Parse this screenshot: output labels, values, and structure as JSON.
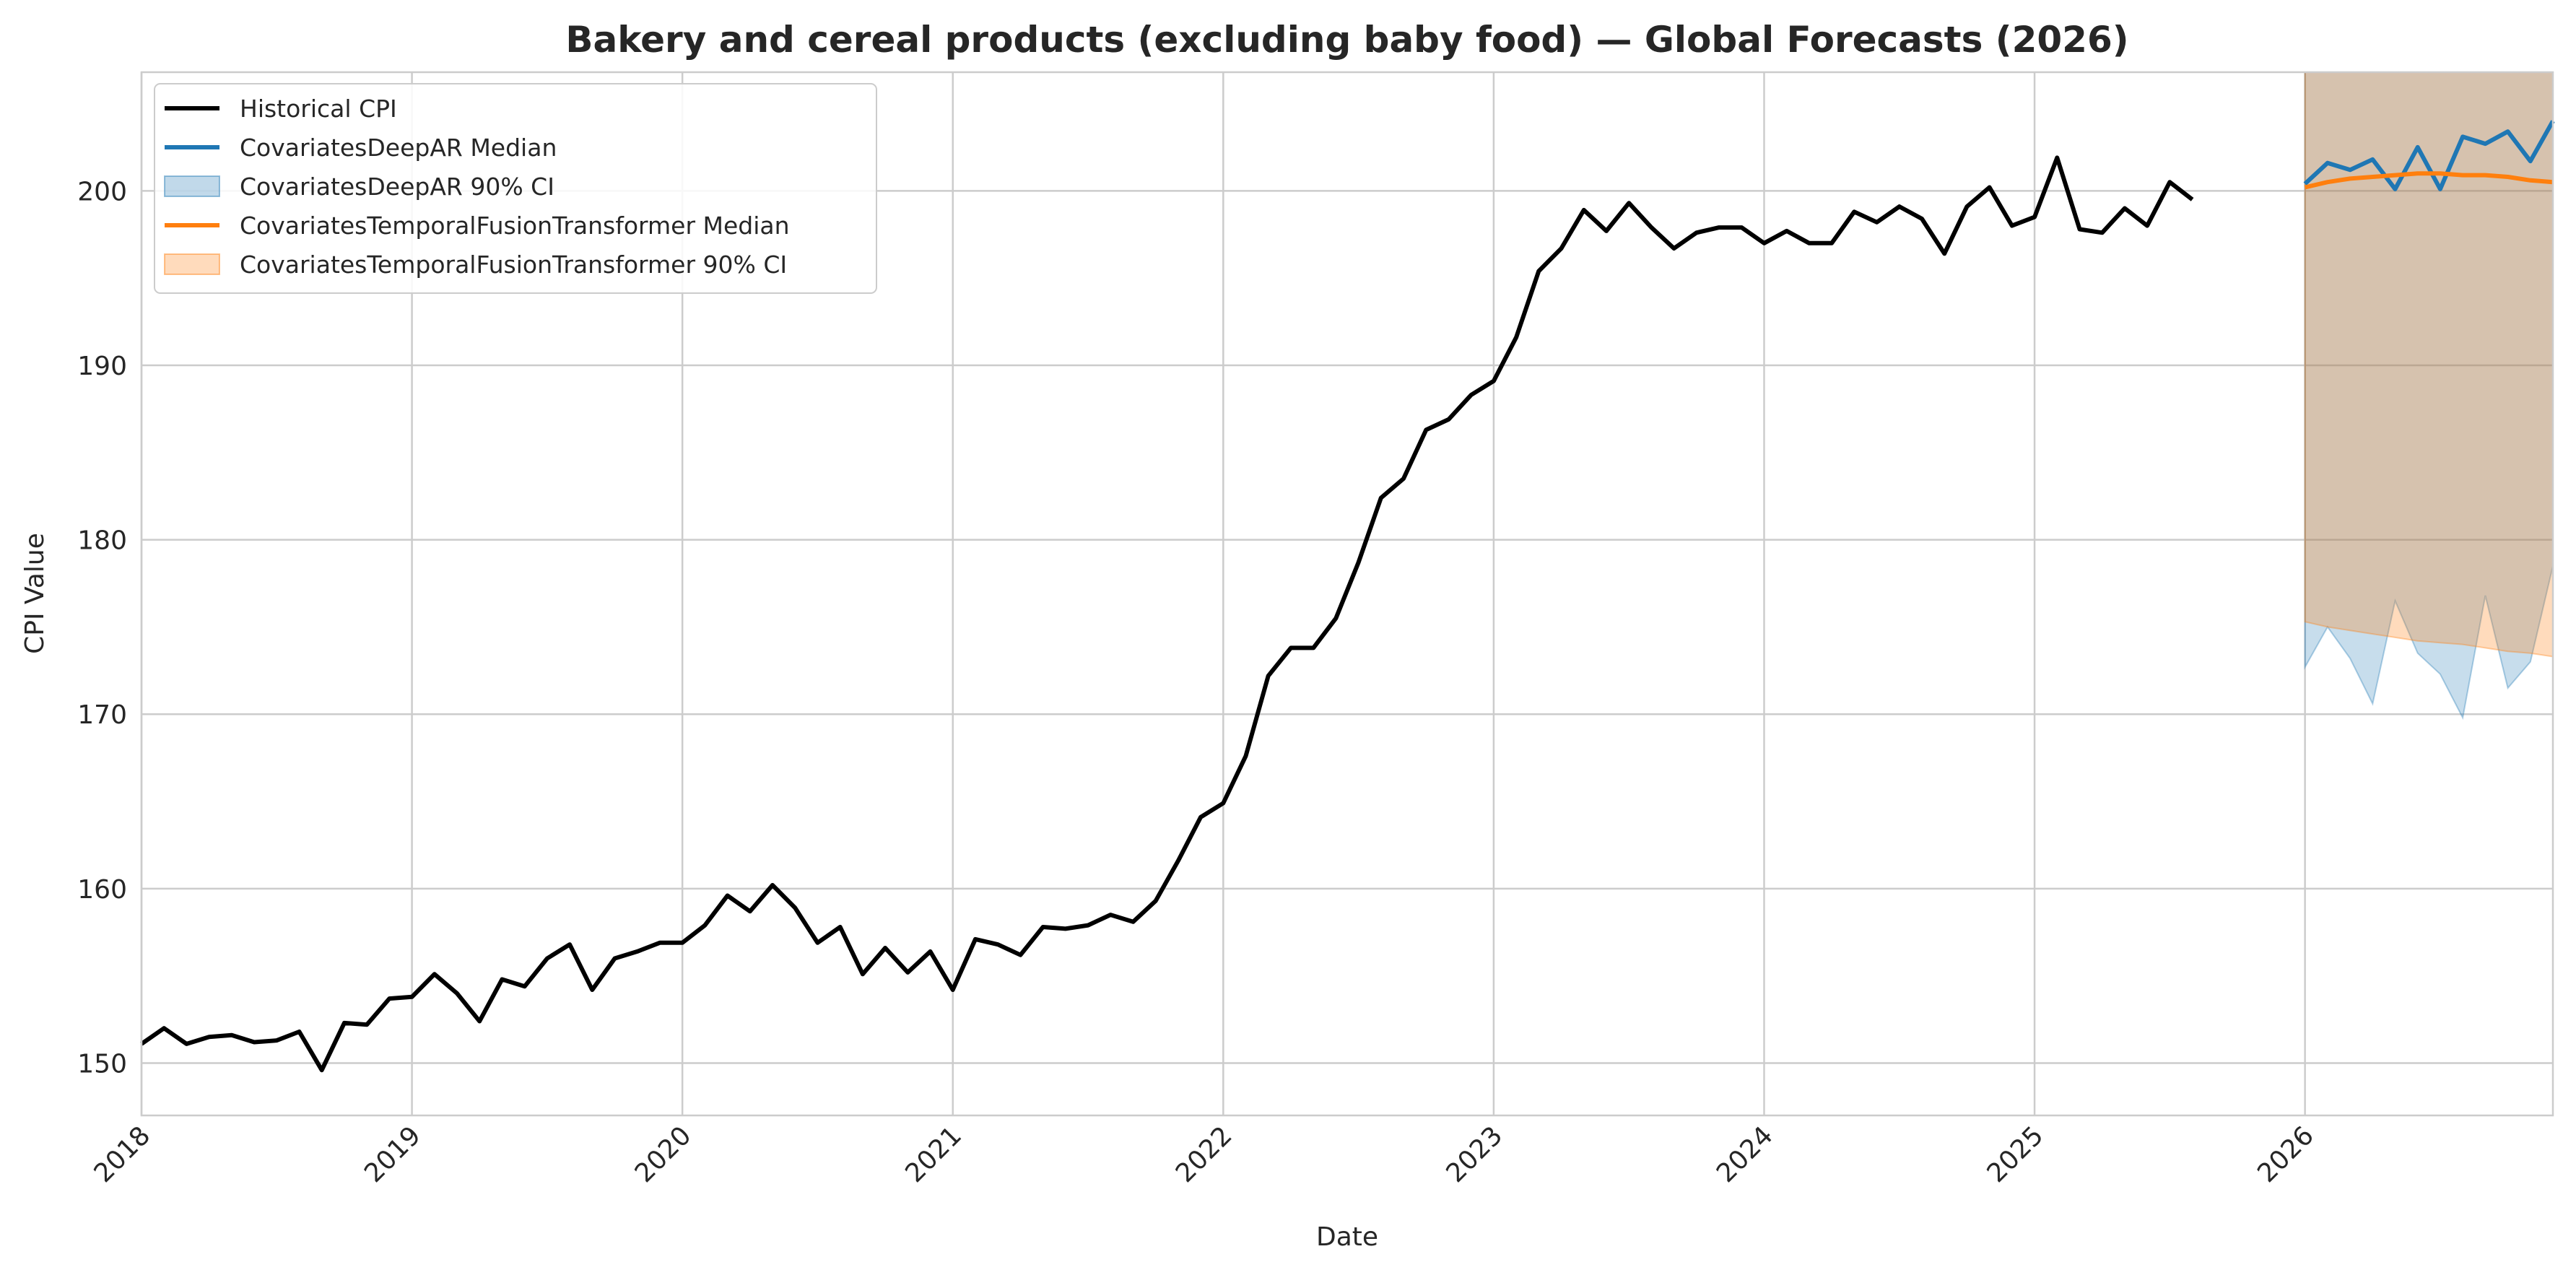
{
  "chart_data": {
    "type": "line",
    "title": "Bakery and cereal products (excluding baby food) — Global Forecasts (2026)",
    "xlabel": "Date",
    "ylabel": "CPI Value",
    "xlim": [
      "2018-01",
      "2026-12"
    ],
    "ylim": [
      147,
      206.8
    ],
    "yticks": [
      150,
      160,
      170,
      180,
      190,
      200
    ],
    "xticks": [
      "2018",
      "2019",
      "2020",
      "2021",
      "2022",
      "2023",
      "2024",
      "2025",
      "2026"
    ],
    "grid": true,
    "legend_position": "top-left",
    "colors": {
      "historical": "#000000",
      "deepar": "#1f77b4",
      "tft": "#ff7f0e",
      "overlap_band": "#c7ad98"
    },
    "legend": [
      {
        "key": "historical",
        "label": "Historical CPI",
        "kind": "line"
      },
      {
        "key": "deepar_median",
        "label": "CovariatesDeepAR Median",
        "kind": "line"
      },
      {
        "key": "deepar_ci",
        "label": "CovariatesDeepAR 90% CI",
        "kind": "band"
      },
      {
        "key": "tft_median",
        "label": "CovariatesTemporalFusionTransformer Median",
        "kind": "line"
      },
      {
        "key": "tft_ci",
        "label": "CovariatesTemporalFusionTransformer 90% CI",
        "kind": "band"
      }
    ],
    "series": [
      {
        "name": "Historical CPI",
        "x": [
          "2018-01",
          "2018-02",
          "2018-03",
          "2018-04",
          "2018-05",
          "2018-06",
          "2018-07",
          "2018-08",
          "2018-09",
          "2018-10",
          "2018-11",
          "2018-12",
          "2019-01",
          "2019-02",
          "2019-03",
          "2019-04",
          "2019-05",
          "2019-06",
          "2019-07",
          "2019-08",
          "2019-09",
          "2019-10",
          "2019-11",
          "2019-12",
          "2020-01",
          "2020-02",
          "2020-03",
          "2020-04",
          "2020-05",
          "2020-06",
          "2020-07",
          "2020-08",
          "2020-09",
          "2020-10",
          "2020-11",
          "2020-12",
          "2021-01",
          "2021-02",
          "2021-03",
          "2021-04",
          "2021-05",
          "2021-06",
          "2021-07",
          "2021-08",
          "2021-09",
          "2021-10",
          "2021-11",
          "2021-12",
          "2022-01",
          "2022-02",
          "2022-03",
          "2022-04",
          "2022-05",
          "2022-06",
          "2022-07",
          "2022-08",
          "2022-09",
          "2022-10",
          "2022-11",
          "2022-12",
          "2023-01",
          "2023-02",
          "2023-03",
          "2023-04",
          "2023-05",
          "2023-06",
          "2023-07",
          "2023-08",
          "2023-09",
          "2023-10",
          "2023-11",
          "2023-12",
          "2024-01",
          "2024-02",
          "2024-03",
          "2024-04",
          "2024-05",
          "2024-06",
          "2024-07",
          "2024-08",
          "2024-09",
          "2024-10",
          "2024-11",
          "2024-12",
          "2025-01",
          "2025-02",
          "2025-03",
          "2025-04",
          "2025-05",
          "2025-06",
          "2025-07",
          "2025-08"
        ],
        "values": [
          151.1,
          152.0,
          151.1,
          151.5,
          151.6,
          151.2,
          151.3,
          151.8,
          149.6,
          152.3,
          152.2,
          153.7,
          153.8,
          155.1,
          154.0,
          152.4,
          154.8,
          154.4,
          156.0,
          156.8,
          154.2,
          156.0,
          156.4,
          156.9,
          156.9,
          157.9,
          159.6,
          158.7,
          160.2,
          158.9,
          156.9,
          157.8,
          155.1,
          156.6,
          155.2,
          156.4,
          154.2,
          157.1,
          156.8,
          156.2,
          157.8,
          157.7,
          157.9,
          158.5,
          158.1,
          159.3,
          161.6,
          164.1,
          164.9,
          167.6,
          172.2,
          173.8,
          173.8,
          175.5,
          178.7,
          182.4,
          183.5,
          186.3,
          186.9,
          188.3,
          189.1,
          191.6,
          195.4,
          196.7,
          198.9,
          197.7,
          199.3,
          197.9,
          196.7,
          197.6,
          197.9,
          197.9,
          197.0,
          197.7,
          197.0,
          197.0,
          198.8,
          198.2,
          199.1,
          198.4,
          196.4,
          199.1,
          200.2,
          198.0,
          198.5,
          201.9,
          197.8,
          197.6,
          199.0,
          198.0,
          200.5,
          199.5
        ]
      },
      {
        "name": "CovariatesDeepAR Median",
        "x": [
          "2026-01",
          "2026-02",
          "2026-03",
          "2026-04",
          "2026-05",
          "2026-06",
          "2026-07",
          "2026-08",
          "2026-09",
          "2026-10",
          "2026-11",
          "2026-12"
        ],
        "values": [
          200.4,
          201.6,
          201.2,
          201.8,
          200.1,
          202.5,
          200.1,
          203.1,
          202.7,
          203.4,
          201.7,
          204.0
        ],
        "lower": [
          172.7,
          175.0,
          173.2,
          170.6,
          176.5,
          173.5,
          172.3,
          169.8,
          176.8,
          171.5,
          173.0,
          178.5
        ],
        "upper": [
          206.8,
          206.8,
          206.8,
          206.8,
          206.8,
          206.8,
          206.8,
          206.8,
          206.8,
          206.8,
          206.8,
          206.8
        ]
      },
      {
        "name": "CovariatesTemporalFusionTransformer Median",
        "x": [
          "2026-01",
          "2026-02",
          "2026-03",
          "2026-04",
          "2026-05",
          "2026-06",
          "2026-07",
          "2026-08",
          "2026-09",
          "2026-10",
          "2026-11",
          "2026-12"
        ],
        "values": [
          200.2,
          200.5,
          200.7,
          200.8,
          200.9,
          201.0,
          201.0,
          200.9,
          200.9,
          200.8,
          200.6,
          200.5
        ],
        "lower": [
          175.3,
          175.0,
          174.8,
          174.6,
          174.4,
          174.2,
          174.1,
          174.0,
          173.8,
          173.6,
          173.5,
          173.3
        ],
        "upper": [
          206.8,
          206.8,
          206.8,
          206.8,
          206.8,
          206.8,
          206.8,
          206.8,
          206.8,
          206.8,
          206.8,
          206.8
        ]
      }
    ]
  }
}
